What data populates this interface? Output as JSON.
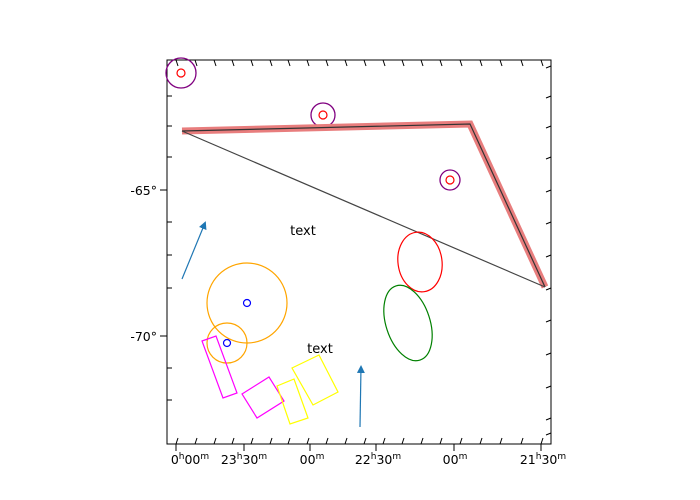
{
  "chart_data": {
    "type": "sky-map",
    "title": "",
    "xlabel": "",
    "ylabel": "",
    "projection": "celestial RA/Dec",
    "x_axis": "Right Ascension (decreasing to the right)",
    "x_ticks": [
      {
        "h": "0",
        "m": "00"
      },
      {
        "h": "23",
        "m": "30"
      },
      {
        "h": "",
        "m": "00"
      },
      {
        "h": "22",
        "m": "30"
      },
      {
        "h": "",
        "m": "00"
      },
      {
        "h": "21",
        "m": "30"
      }
    ],
    "x_tick_ra_hours": [
      24.0,
      23.5,
      23.0,
      22.5,
      22.0,
      21.5
    ],
    "y_ticks": [
      "-65°",
      "-70°"
    ],
    "y_tick_values": [
      -65,
      -70
    ],
    "text_annotations": [
      "text",
      "text"
    ],
    "regions": [
      {
        "kind": "circle-point",
        "color": "#800080"
      },
      {
        "kind": "circle-point",
        "color": "#800080"
      },
      {
        "kind": "circle-point",
        "color": "#800080"
      },
      {
        "kind": "polyline-band",
        "color": "#e87d7d"
      },
      {
        "kind": "polygon",
        "color": "#333333"
      },
      {
        "kind": "ellipse",
        "color": "#ff0000"
      },
      {
        "kind": "ellipse",
        "color": "#008000"
      },
      {
        "kind": "circle",
        "color": "#ffa500"
      },
      {
        "kind": "circle",
        "color": "#ffa500"
      },
      {
        "kind": "point",
        "color": "#0000ff"
      },
      {
        "kind": "point",
        "color": "#0000ff"
      },
      {
        "kind": "box",
        "color": "#ff00ff"
      },
      {
        "kind": "box",
        "color": "#ff00ff"
      },
      {
        "kind": "box",
        "color": "#ffff00"
      },
      {
        "kind": "box",
        "color": "#ffff00"
      },
      {
        "kind": "vector",
        "color": "#1f77b4"
      },
      {
        "kind": "vector",
        "color": "#1f77b4"
      }
    ],
    "grid": false
  }
}
